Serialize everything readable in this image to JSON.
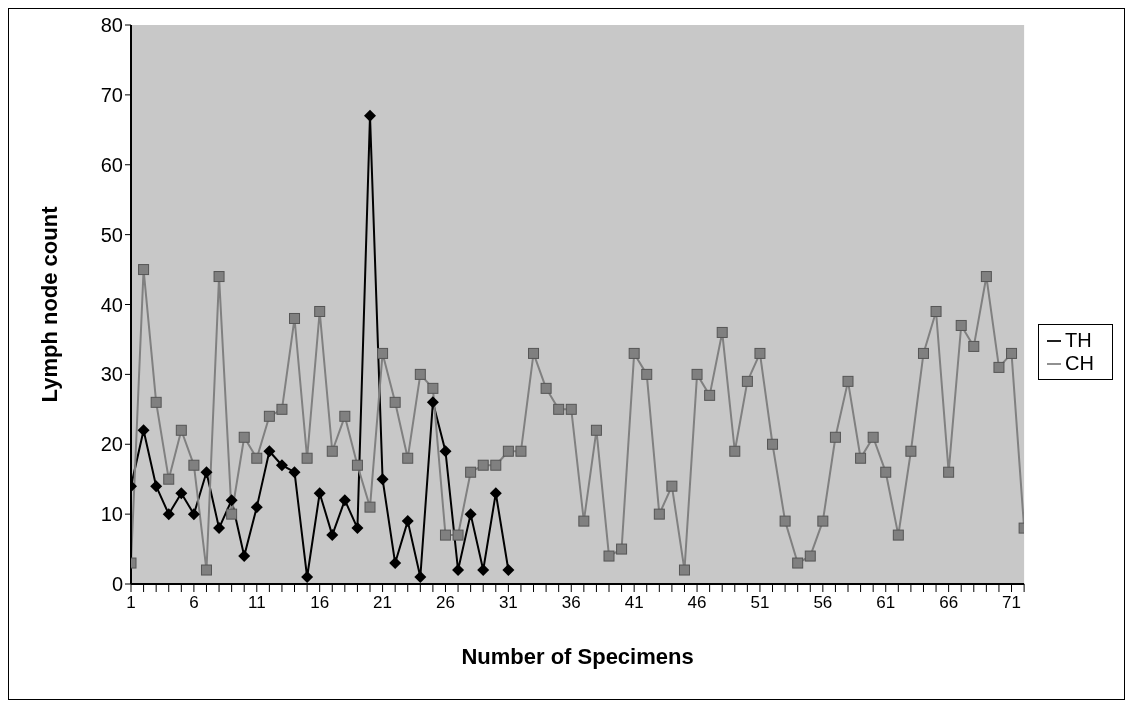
{
  "chart_data": {
    "type": "line",
    "xlabel": "Number of Specimens",
    "ylabel": "Lymph node count",
    "x": [
      1,
      2,
      3,
      4,
      5,
      6,
      7,
      8,
      9,
      10,
      11,
      12,
      13,
      14,
      15,
      16,
      17,
      18,
      19,
      20,
      21,
      22,
      23,
      24,
      25,
      26,
      27,
      28,
      29,
      30,
      31,
      32,
      33,
      34,
      35,
      36,
      37,
      38,
      39,
      40,
      41,
      42,
      43,
      44,
      45,
      46,
      47,
      48,
      49,
      50,
      51,
      52,
      53,
      54,
      55,
      56,
      57,
      58,
      59,
      60,
      61,
      62,
      63,
      64,
      65,
      66,
      67,
      68,
      69,
      70,
      71,
      72
    ],
    "series": [
      {
        "name": "TH",
        "color": "#000000",
        "marker": "diamond",
        "values": [
          14,
          22,
          14,
          10,
          13,
          10,
          16,
          8,
          12,
          4,
          11,
          19,
          17,
          16,
          1,
          13,
          7,
          12,
          8,
          67,
          15,
          3,
          9,
          1,
          26,
          19,
          2,
          10,
          2,
          13,
          2,
          null,
          null,
          null,
          null,
          null,
          null,
          null,
          null,
          null,
          null,
          null,
          null,
          null,
          null,
          null,
          null,
          null,
          null,
          null,
          null,
          null,
          null,
          null,
          null,
          null,
          null,
          null,
          null,
          null,
          null,
          null,
          null,
          null,
          null,
          null,
          null,
          null,
          null,
          null,
          null,
          null
        ]
      },
      {
        "name": "CH",
        "color": "#808080",
        "marker": "square",
        "values": [
          3,
          45,
          26,
          15,
          22,
          17,
          2,
          44,
          10,
          21,
          18,
          24,
          25,
          38,
          18,
          39,
          19,
          24,
          17,
          11,
          33,
          26,
          18,
          30,
          28,
          7,
          7,
          16,
          17,
          17,
          19,
          19,
          33,
          28,
          25,
          25,
          9,
          22,
          4,
          5,
          33,
          30,
          10,
          14,
          2,
          30,
          27,
          36,
          19,
          29,
          33,
          20,
          9,
          3,
          4,
          9,
          21,
          29,
          18,
          21,
          16,
          7,
          19,
          33,
          39,
          16,
          37,
          34,
          44,
          31,
          33,
          8
        ]
      }
    ],
    "xlim": [
      1,
      72
    ],
    "xticks": [
      1,
      {
        "value": 2,
        "label": null
      },
      {
        "value": 3,
        "label": null
      },
      {
        "value": 4,
        "label": null
      },
      {
        "value": 5,
        "label": null
      },
      6,
      {
        "value": 7,
        "label": null
      },
      {
        "value": 8,
        "label": null
      },
      {
        "value": 9,
        "label": null
      },
      {
        "value": 10,
        "label": null
      },
      11,
      {
        "value": 12,
        "label": null
      },
      {
        "value": 13,
        "label": null
      },
      {
        "value": 14,
        "label": null
      },
      {
        "value": 15,
        "label": null
      },
      16,
      {
        "value": 17,
        "label": null
      },
      {
        "value": 18,
        "label": null
      },
      {
        "value": 19,
        "label": null
      },
      {
        "value": 20,
        "label": null
      },
      21,
      {
        "value": 22,
        "label": null
      },
      {
        "value": 23,
        "label": null
      },
      {
        "value": 24,
        "label": null
      },
      {
        "value": 25,
        "label": null
      },
      26,
      {
        "value": 27,
        "label": null
      },
      {
        "value": 28,
        "label": null
      },
      {
        "value": 29,
        "label": null
      },
      {
        "value": 30,
        "label": null
      },
      31,
      {
        "value": 32,
        "label": null
      },
      {
        "value": 33,
        "label": null
      },
      {
        "value": 34,
        "label": null
      },
      {
        "value": 35,
        "label": null
      },
      36,
      {
        "value": 37,
        "label": null
      },
      {
        "value": 38,
        "label": null
      },
      {
        "value": 39,
        "label": null
      },
      {
        "value": 40,
        "label": null
      },
      41,
      {
        "value": 42,
        "label": null
      },
      {
        "value": 43,
        "label": null
      },
      {
        "value": 44,
        "label": null
      },
      {
        "value": 45,
        "label": null
      },
      46,
      {
        "value": 47,
        "label": null
      },
      {
        "value": 48,
        "label": null
      },
      {
        "value": 49,
        "label": null
      },
      {
        "value": 50,
        "label": null
      },
      51,
      {
        "value": 52,
        "label": null
      },
      {
        "value": 53,
        "label": null
      },
      {
        "value": 54,
        "label": null
      },
      {
        "value": 55,
        "label": null
      },
      56,
      {
        "value": 57,
        "label": null
      },
      {
        "value": 58,
        "label": null
      },
      {
        "value": 59,
        "label": null
      },
      {
        "value": 60,
        "label": null
      },
      61,
      {
        "value": 62,
        "label": null
      },
      {
        "value": 63,
        "label": null
      },
      {
        "value": 64,
        "label": null
      },
      {
        "value": 65,
        "label": null
      },
      66,
      {
        "value": 67,
        "label": null
      },
      {
        "value": 68,
        "label": null
      },
      {
        "value": 69,
        "label": null
      },
      {
        "value": 70,
        "label": null
      },
      71,
      {
        "value": 72,
        "label": null
      }
    ],
    "ylim": [
      0,
      80
    ],
    "yticks": [
      0,
      10,
      20,
      30,
      40,
      50,
      60,
      70,
      80
    ],
    "legend": "right"
  }
}
